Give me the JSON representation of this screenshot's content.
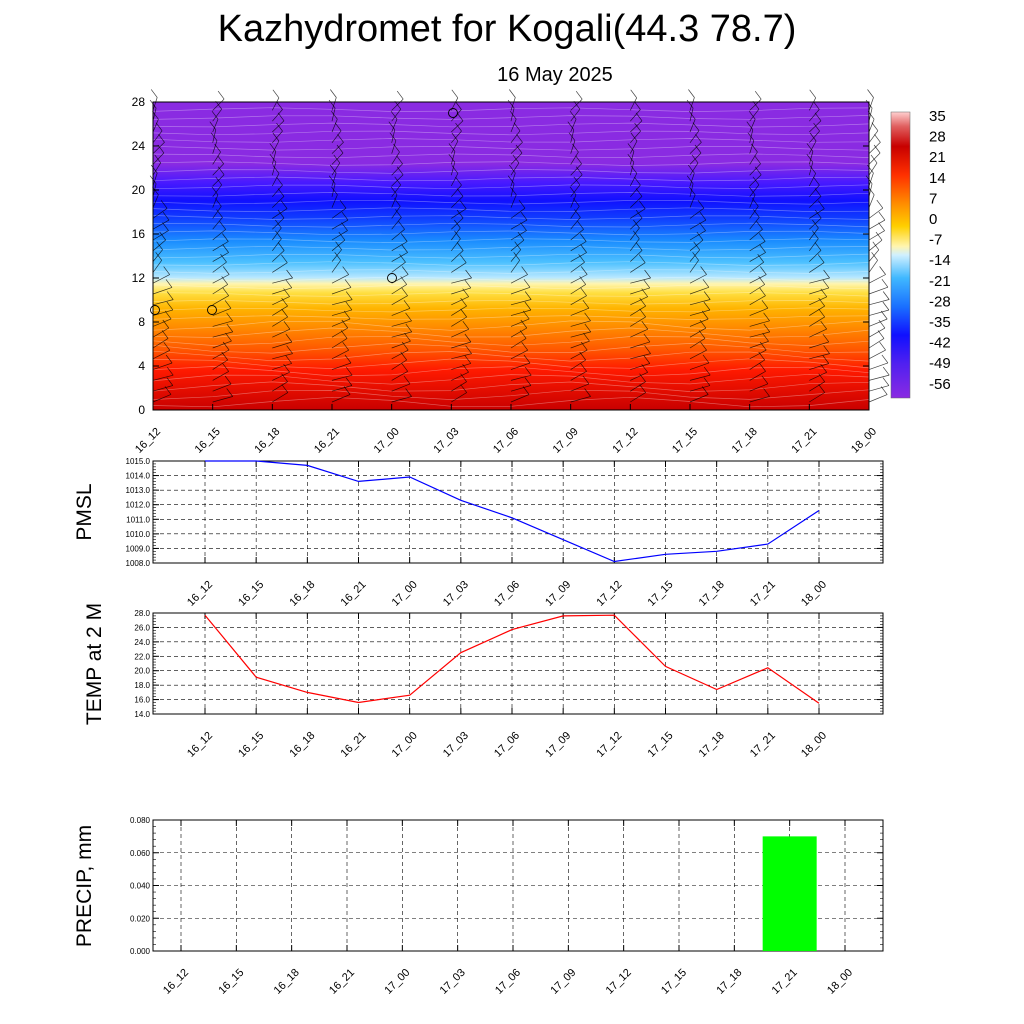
{
  "title": "Kazhydromet for Kogali(44.3 78.7)",
  "subtitle": "16 May 2025",
  "time_labels": [
    "16_12",
    "16_15",
    "16_18",
    "16_21",
    "17_00",
    "17_03",
    "17_06",
    "17_09",
    "17_12",
    "17_15",
    "17_18",
    "17_21",
    "18_00"
  ],
  "chart_data": [
    {
      "type": "heatmap",
      "title": "Kazhydromet for Kogali(44.3 78.7)",
      "subtitle": "16 May 2025",
      "x_categories": [
        "16_12",
        "16_15",
        "16_18",
        "16_21",
        "17_00",
        "17_03",
        "17_06",
        "17_09",
        "17_12",
        "17_15",
        "17_18",
        "17_21",
        "18_00"
      ],
      "y_ticks": [
        "0",
        "4",
        "8",
        "12",
        "16",
        "20",
        "24",
        "28"
      ],
      "ylim": [
        0,
        28
      ],
      "colorbar_labels": [
        "35",
        "28",
        "21",
        "14",
        "7",
        "0",
        "-7",
        "-14",
        "-21",
        "-28",
        "-35",
        "-42",
        "-49",
        "-56"
      ],
      "colorbar_range": [
        -60,
        38
      ],
      "colors": {
        "hot": "#d40000",
        "warm": "#ff8c00",
        "neutral": "#fff3a0",
        "cool": "#3cb0ff",
        "cold": "#1010ff",
        "coldest": "#8a2be2"
      }
    },
    {
      "type": "line",
      "ylabel": "PMSL",
      "categories": [
        "16_12",
        "16_15",
        "16_18",
        "16_21",
        "17_00",
        "17_03",
        "17_06",
        "17_09",
        "17_12",
        "17_15",
        "17_18",
        "17_21",
        "18_00"
      ],
      "values": [
        1015.0,
        1015.0,
        1014.7,
        1013.6,
        1013.9,
        1012.3,
        1011.1,
        1009.6,
        1008.1,
        1008.6,
        1008.8,
        1009.3,
        1011.6
      ],
      "ylim": [
        1008.0,
        1015.0
      ],
      "y_ticks": [
        "1008.0",
        "1009.0",
        "1010.0",
        "1011.0",
        "1012.0",
        "1013.0",
        "1014.0",
        "1015.0"
      ],
      "color": "#0000ff"
    },
    {
      "type": "line",
      "ylabel": "TEMP at 2 M",
      "categories": [
        "16_12",
        "16_15",
        "16_18",
        "16_21",
        "17_00",
        "17_03",
        "17_06",
        "17_09",
        "17_12",
        "17_15",
        "17_18",
        "17_21",
        "18_00"
      ],
      "values": [
        27.7,
        19.1,
        17.0,
        15.6,
        16.6,
        22.5,
        25.7,
        27.6,
        27.7,
        20.6,
        17.4,
        20.4,
        15.5
      ],
      "ylim": [
        14.0,
        28.0
      ],
      "y_ticks": [
        "14.0",
        "16.0",
        "18.0",
        "20.0",
        "22.0",
        "24.0",
        "26.0",
        "28.0"
      ],
      "color": "#ff0000"
    },
    {
      "type": "bar",
      "ylabel": "PRECIP, mm",
      "categories": [
        "16_12",
        "16_15",
        "16_18",
        "16_21",
        "17_00",
        "17_03",
        "17_06",
        "17_09",
        "17_12",
        "17_15",
        "17_18",
        "17_21",
        "18_00"
      ],
      "values": [
        0,
        0,
        0,
        0,
        0,
        0,
        0,
        0,
        0,
        0,
        0,
        0.07,
        0
      ],
      "ylim": [
        0,
        0.08
      ],
      "y_ticks": [
        "0.000",
        "0.020",
        "0.040",
        "0.060",
        "0.080"
      ],
      "color": "#00ff00"
    }
  ]
}
